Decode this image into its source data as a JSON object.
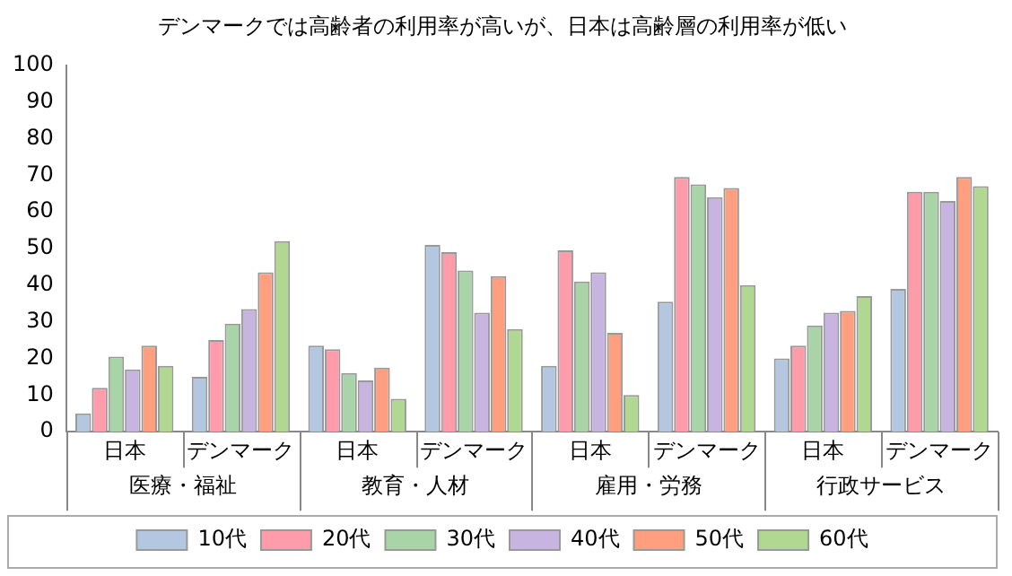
{
  "chart_data": {
    "type": "bar",
    "title": "デンマークでは高齢者の利用率が高いが、日本は高齢層の利用率が低い",
    "categories": [
      "日本",
      "デンマーク",
      "日本",
      "デンマーク",
      "日本",
      "デンマーク",
      "日本",
      "デンマーク"
    ],
    "annotations": [
      "医療・福祉",
      "教育・人材",
      "雇用・労務",
      "行政サービス"
    ],
    "series": [
      {
        "name": "10代",
        "color": "#b3c7e0",
        "values": [
          5,
          15,
          23.5,
          51,
          18,
          35.5,
          20,
          39
        ]
      },
      {
        "name": "20代",
        "color": "#ff9cac",
        "values": [
          12,
          25,
          22.5,
          49,
          49.5,
          69.5,
          23.5,
          65.5
        ]
      },
      {
        "name": "30代",
        "color": "#a8d4a8",
        "values": [
          20.5,
          29.5,
          16,
          44,
          41,
          67.5,
          29,
          65.5
        ]
      },
      {
        "name": "40代",
        "color": "#c8b4e0",
        "values": [
          17,
          33.5,
          14,
          32.5,
          43.5,
          64,
          32.5,
          63
        ]
      },
      {
        "name": "50代",
        "color": "#ff9f80",
        "values": [
          23.5,
          43.5,
          17.5,
          42.5,
          27,
          66.5,
          33,
          69.5
        ]
      },
      {
        "name": "60代",
        "color": "#b0d890",
        "values": [
          18,
          52,
          9,
          28,
          10,
          40,
          37,
          67
        ]
      }
    ],
    "ylim": [
      0,
      100
    ],
    "yticks": [
      0,
      10,
      20,
      30,
      40,
      50,
      60,
      70,
      80,
      90,
      100
    ],
    "grid": false,
    "legend": "bottom"
  }
}
